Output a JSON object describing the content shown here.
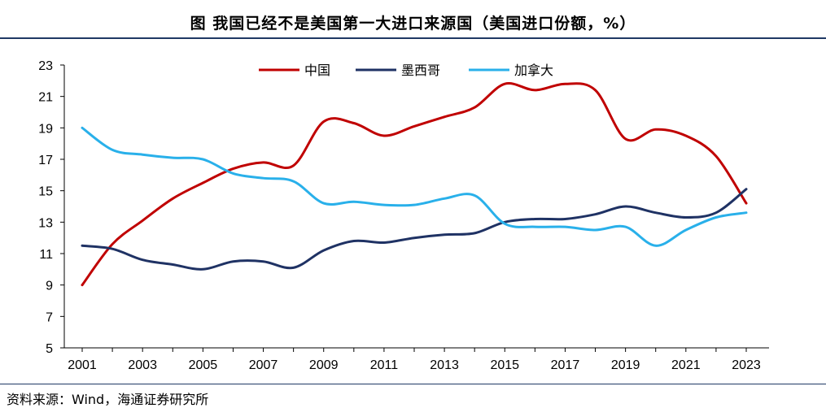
{
  "title": "图  我国已经不是美国第一大进口来源国（美国进口份额，%）",
  "source": "资料来源：Wind，海通证券研究所",
  "colors": {
    "china": "#c00000",
    "mexico": "#1f3264",
    "canada": "#29b0ea",
    "rule": "#1f3864"
  },
  "chart_data": {
    "type": "line",
    "x": [
      2001,
      2002,
      2003,
      2004,
      2005,
      2006,
      2007,
      2008,
      2009,
      2010,
      2011,
      2012,
      2013,
      2014,
      2015,
      2016,
      2017,
      2018,
      2019,
      2020,
      2021,
      2022,
      2023
    ],
    "x_tick_labels": [
      "2001",
      "2003",
      "2005",
      "2007",
      "2009",
      "2011",
      "2013",
      "2015",
      "2017",
      "2019",
      "2021",
      "2023"
    ],
    "y_ticks": [
      5,
      7,
      9,
      11,
      13,
      15,
      17,
      19,
      21,
      23
    ],
    "ylim": [
      5,
      23
    ],
    "legend_position": "top-center",
    "grid": false,
    "series": [
      {
        "name": "中国",
        "color": "#c00000",
        "values": [
          9.0,
          11.6,
          13.1,
          14.5,
          15.5,
          16.4,
          16.8,
          16.6,
          19.4,
          19.3,
          18.5,
          19.1,
          19.7,
          20.3,
          21.8,
          21.4,
          21.8,
          21.4,
          18.3,
          18.9,
          18.5,
          17.2,
          14.2
        ]
      },
      {
        "name": "墨西哥",
        "color": "#1f3264",
        "values": [
          11.5,
          11.3,
          10.6,
          10.3,
          10.0,
          10.5,
          10.5,
          10.1,
          11.2,
          11.8,
          11.7,
          12.0,
          12.2,
          12.3,
          13.0,
          13.2,
          13.2,
          13.5,
          14.0,
          13.6,
          13.3,
          13.6,
          15.1
        ]
      },
      {
        "name": "加拿大",
        "color": "#29b0ea",
        "values": [
          19.0,
          17.6,
          17.3,
          17.1,
          17.0,
          16.1,
          15.8,
          15.6,
          14.2,
          14.3,
          14.1,
          14.1,
          14.5,
          14.7,
          12.9,
          12.7,
          12.7,
          12.5,
          12.7,
          11.5,
          12.5,
          13.3,
          13.6
        ]
      }
    ]
  }
}
